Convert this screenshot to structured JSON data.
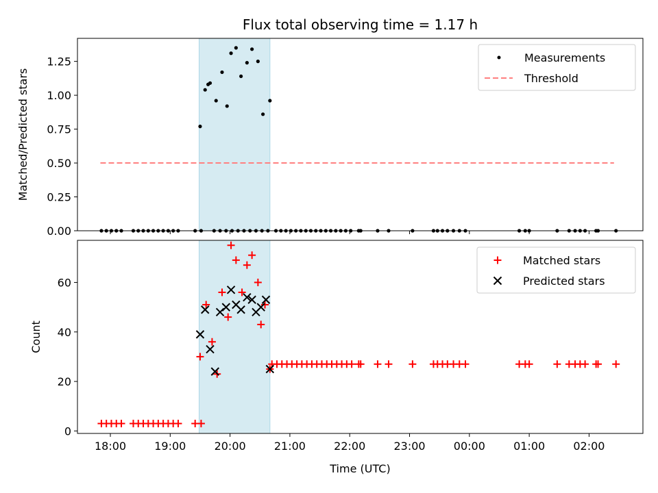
{
  "chart_data": {
    "type": "scatter",
    "title": "Flux total observing time = 1.17 h",
    "xlabel": "Time (UTC)",
    "x_ticks": [
      "18:00",
      "19:00",
      "20:00",
      "21:00",
      "22:00",
      "23:00",
      "00:00",
      "01:00",
      "02:00"
    ],
    "xlim_hours_since_17h": [
      0.45,
      9.9
    ],
    "highlight_span": {
      "start": "19:29",
      "end": "20:40",
      "color": "#add8e6"
    },
    "top_panel": {
      "ylabel": "Matched/Predicted stars",
      "ylim": [
        0,
        1.42
      ],
      "y_ticks": [
        "0.00",
        "0.25",
        "0.50",
        "0.75",
        "1.00",
        "1.25"
      ],
      "legend": {
        "position": "top-right",
        "items": [
          "Measurements",
          "Threshold"
        ]
      },
      "threshold": {
        "name": "Threshold",
        "value": 0.5,
        "x_start": "17:50",
        "x_end": "02:25",
        "color": "#ff7f7f",
        "style": "dashed"
      },
      "measurements": {
        "name": "Measurements",
        "color": "#000000",
        "x": [
          "17:51",
          "17:56",
          "18:01",
          "18:06",
          "18:11",
          "18:23",
          "18:28",
          "18:33",
          "18:38",
          "18:43",
          "18:48",
          "18:53",
          "18:58",
          "19:03",
          "19:08",
          "19:25",
          "19:31",
          "19:30",
          "19:35",
          "19:40",
          "19:46",
          "19:52",
          "19:57",
          "20:01",
          "20:06",
          "20:11",
          "20:17",
          "20:22",
          "20:28",
          "20:33",
          "20:40",
          "19:38",
          "19:44",
          "19:50",
          "19:56",
          "20:02",
          "20:08",
          "20:14",
          "20:20",
          "20:26",
          "20:32",
          "20:38",
          "20:46",
          "20:51",
          "20:56",
          "21:01",
          "21:06",
          "21:11",
          "21:16",
          "21:21",
          "21:26",
          "21:31",
          "21:36",
          "21:41",
          "21:46",
          "21:51",
          "21:56",
          "22:01",
          "22:09",
          "22:11",
          "22:28",
          "22:39",
          "23:03",
          "23:24",
          "23:28",
          "23:33",
          "23:38",
          "23:44",
          "23:50",
          "23:56",
          "00:50",
          "00:56",
          "01:00",
          "01:28",
          "01:40",
          "01:46",
          "01:51",
          "01:56",
          "02:07",
          "02:09",
          "02:27"
        ],
        "y": [
          0,
          0,
          0,
          0,
          0,
          0,
          0,
          0,
          0,
          0,
          0,
          0,
          0,
          0,
          0,
          0,
          0,
          0.77,
          1.04,
          1.09,
          0.96,
          1.17,
          0.92,
          1.31,
          1.35,
          1.14,
          1.24,
          1.34,
          1.25,
          0.86,
          0.96,
          1.08,
          0,
          0,
          0,
          0,
          0,
          0,
          0,
          0,
          0,
          0,
          0,
          0,
          0,
          0,
          0,
          0,
          0,
          0,
          0,
          0,
          0,
          0,
          0,
          0,
          0,
          0,
          0,
          0,
          0,
          0,
          0,
          0,
          0,
          0,
          0,
          0,
          0,
          0,
          0,
          0,
          0,
          0,
          0,
          0,
          0,
          0,
          0,
          0,
          0
        ]
      }
    },
    "bottom_panel": {
      "ylabel": "Count",
      "ylim": [
        -1,
        77
      ],
      "y_ticks": [
        "0",
        "20",
        "40",
        "60"
      ],
      "legend": {
        "position": "top-right",
        "items": [
          "Matched stars",
          "Predicted stars"
        ]
      },
      "matched": {
        "name": "Matched stars",
        "color": "#ff0000",
        "x": [
          "17:51",
          "17:56",
          "18:01",
          "18:06",
          "18:11",
          "18:23",
          "18:28",
          "18:33",
          "18:38",
          "18:43",
          "18:48",
          "18:53",
          "18:58",
          "19:03",
          "19:08",
          "19:25",
          "19:31",
          "19:30",
          "19:36",
          "19:42",
          "19:47",
          "19:52",
          "19:58",
          "20:01",
          "20:06",
          "20:12",
          "20:17",
          "20:22",
          "20:28",
          "20:31",
          "20:35",
          "20:40",
          "20:42",
          "20:47",
          "20:52",
          "20:57",
          "21:02",
          "21:07",
          "21:12",
          "21:17",
          "21:22",
          "21:27",
          "21:32",
          "21:37",
          "21:42",
          "21:47",
          "21:52",
          "21:57",
          "22:02",
          "22:09",
          "22:11",
          "22:28",
          "22:39",
          "23:03",
          "23:24",
          "23:28",
          "23:33",
          "23:38",
          "23:44",
          "23:50",
          "23:56",
          "00:50",
          "00:56",
          "01:00",
          "01:28",
          "01:40",
          "01:46",
          "01:51",
          "01:56",
          "02:07",
          "02:09",
          "02:27"
        ],
        "y": [
          3,
          3,
          3,
          3,
          3,
          3,
          3,
          3,
          3,
          3,
          3,
          3,
          3,
          3,
          3,
          3,
          3,
          30,
          51,
          36,
          23,
          56,
          46,
          75,
          69,
          56,
          67,
          71,
          60,
          43,
          51,
          25,
          27,
          27,
          27,
          27,
          27,
          27,
          27,
          27,
          27,
          27,
          27,
          27,
          27,
          27,
          27,
          27,
          27,
          27,
          27,
          27,
          27,
          27,
          27,
          27,
          27,
          27,
          27,
          27,
          27,
          27,
          27,
          27,
          27,
          27,
          27,
          27,
          27,
          27,
          27,
          27
        ]
      },
      "predicted": {
        "name": "Predicted stars",
        "color": "#000000",
        "x": [
          "19:30",
          "19:35",
          "19:40",
          "19:45",
          "19:50",
          "19:56",
          "20:01",
          "20:06",
          "20:11",
          "20:17",
          "20:22",
          "20:26",
          "20:31",
          "20:36",
          "20:40"
        ],
        "y": [
          39,
          49,
          33,
          24,
          48,
          50,
          57,
          51,
          49,
          54,
          53,
          48,
          50,
          53,
          25
        ]
      }
    }
  }
}
